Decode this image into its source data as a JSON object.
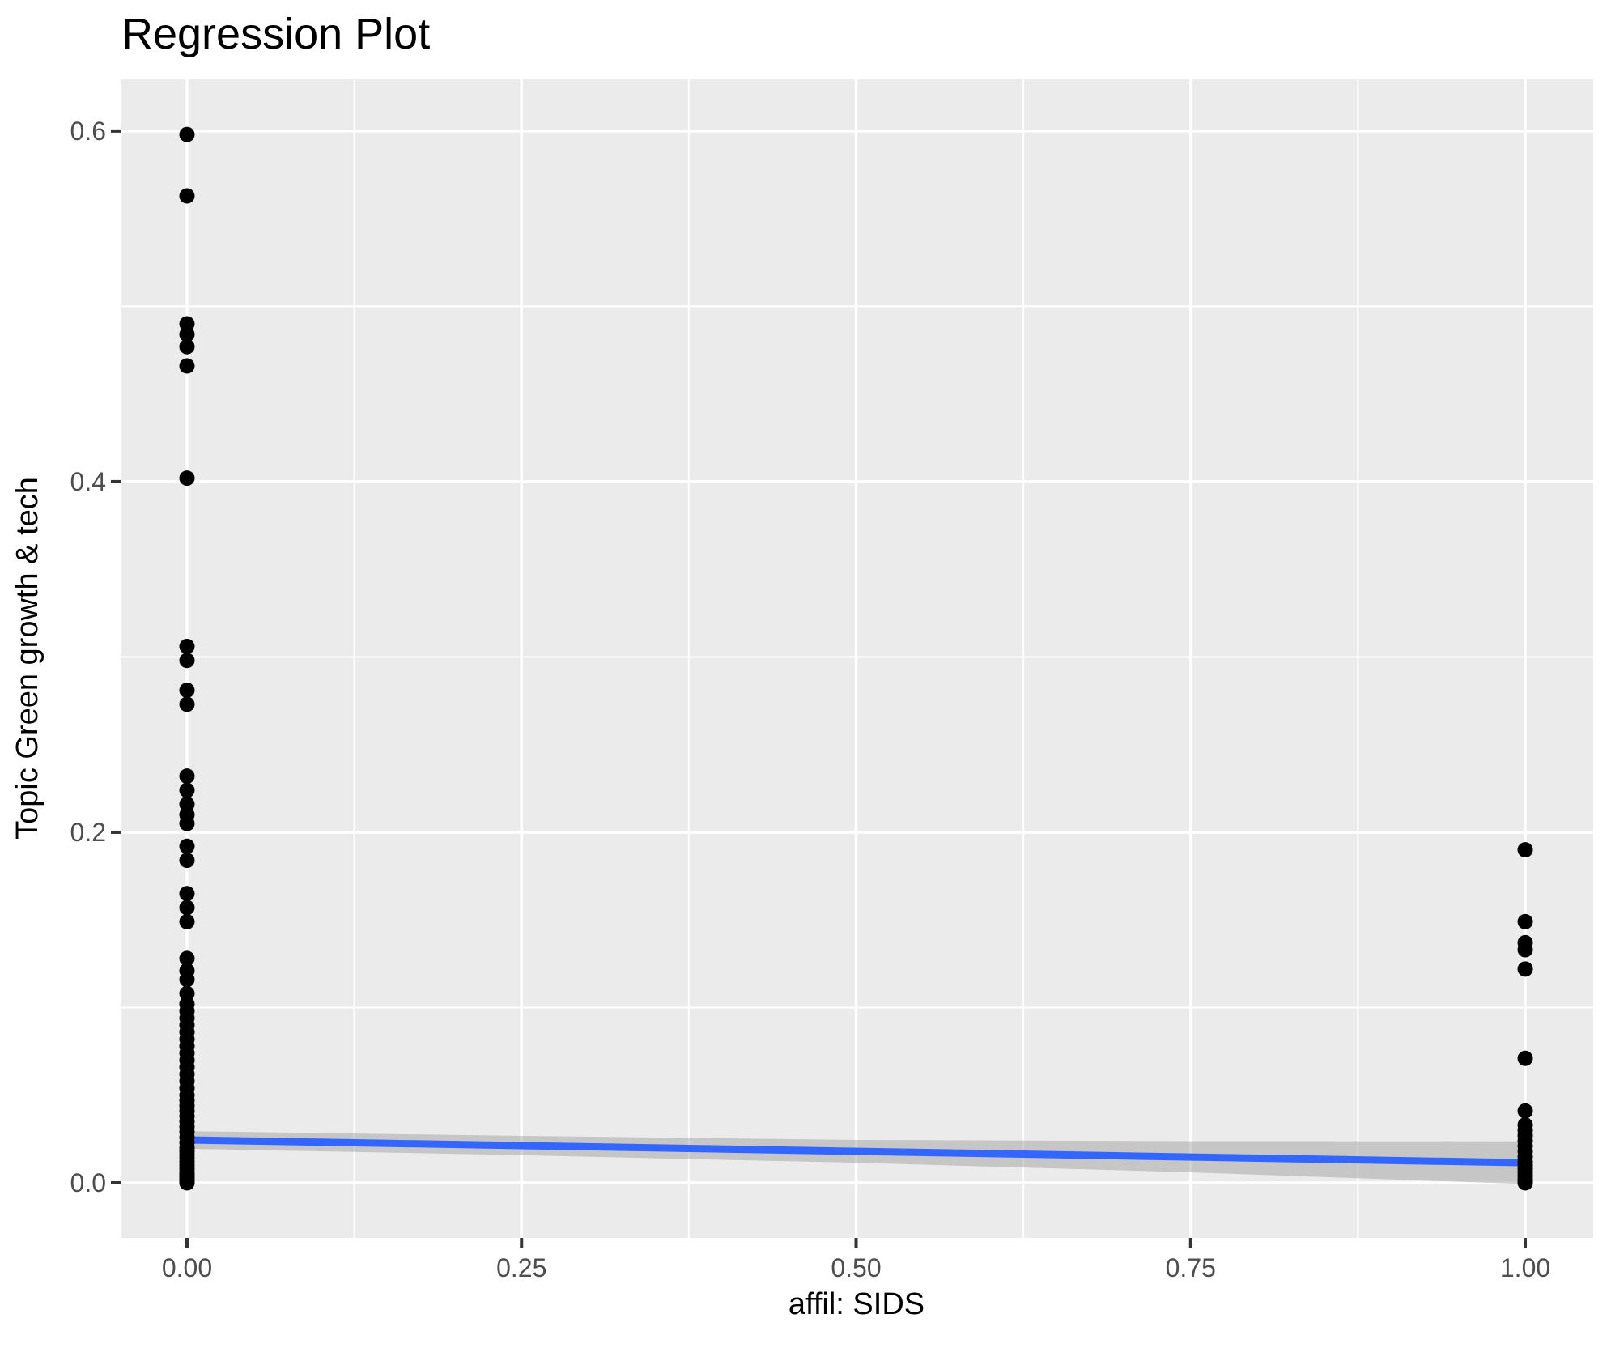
{
  "chart": {
    "title": "Regression Plot",
    "xlabel": "affil: SIDS",
    "ylabel": "Topic Green growth & tech"
  },
  "chart_data": {
    "type": "scatter",
    "title": "Regression Plot",
    "xlabel": "affil: SIDS",
    "ylabel": "Topic Green growth & tech",
    "grid": true,
    "legend": false,
    "xlim": [
      -0.0496,
      1.0508
    ],
    "ylim": [
      -0.0314,
      0.6295
    ],
    "x_ticks": {
      "values": [
        0,
        0.25,
        0.5,
        0.75,
        1.0
      ],
      "labels": [
        "0.00",
        "0.25",
        "0.50",
        "0.75",
        "1.00"
      ]
    },
    "y_ticks": {
      "values": [
        0,
        0.2,
        0.4,
        0.6
      ],
      "labels": [
        "0.0",
        "0.2",
        "0.4",
        "0.6"
      ]
    },
    "x_minor": [
      0.125,
      0.375,
      0.625,
      0.875
    ],
    "y_minor": [
      0.1,
      0.3,
      0.5
    ],
    "series": [
      {
        "name": "affil SIDS = 0",
        "x": 0,
        "y": [
          0.598,
          0.563,
          0.49,
          0.484,
          0.477,
          0.466,
          0.402,
          0.306,
          0.298,
          0.281,
          0.273,
          0.232,
          0.224,
          0.216,
          0.21,
          0.205,
          0.192,
          0.184,
          0.165,
          0.157,
          0.149,
          0.128,
          0.121,
          0.116,
          0.108,
          0.102,
          0.098,
          0.094,
          0.09,
          0.086,
          0.082,
          0.078,
          0.074,
          0.07,
          0.066,
          0.062,
          0.058,
          0.054,
          0.05,
          0.047,
          0.044,
          0.041,
          0.038,
          0.035,
          0.032,
          0.029,
          0.026,
          0.023,
          0.02,
          0.018,
          0.016,
          0.014,
          0.012,
          0.01,
          0.008,
          0.006,
          0.005,
          0.004,
          0.003,
          0.002,
          0.001,
          0.0
        ]
      },
      {
        "name": "affil SIDS = 1",
        "x": 1,
        "y": [
          0.19,
          0.149,
          0.137,
          0.133,
          0.122,
          0.071,
          0.041,
          0.033,
          0.03,
          0.027,
          0.024,
          0.021,
          0.018,
          0.015,
          0.012,
          0.01,
          0.008,
          0.006,
          0.004,
          0.002,
          0.001,
          0.0
        ]
      }
    ],
    "regression_line": {
      "x": [
        0,
        1
      ],
      "y": [
        0.0245,
        0.0115
      ]
    },
    "confidence_band": {
      "x": [
        0,
        0.25,
        0.5,
        0.75,
        1
      ],
      "upper": [
        0.0295,
        0.0268,
        0.0245,
        0.0238,
        0.0237
      ],
      "lower": [
        0.0195,
        0.0158,
        0.0115,
        0.006,
        -0.0007
      ]
    },
    "colors": {
      "panel_bg": "#EBEBEB",
      "grid": "#FFFFFF",
      "point": "#000000",
      "line": "#3366FF",
      "band": "rgba(153,153,153,0.45)",
      "tick_label": "#4D4D4D",
      "tick_mark": "#333333",
      "text": "#000000"
    }
  }
}
